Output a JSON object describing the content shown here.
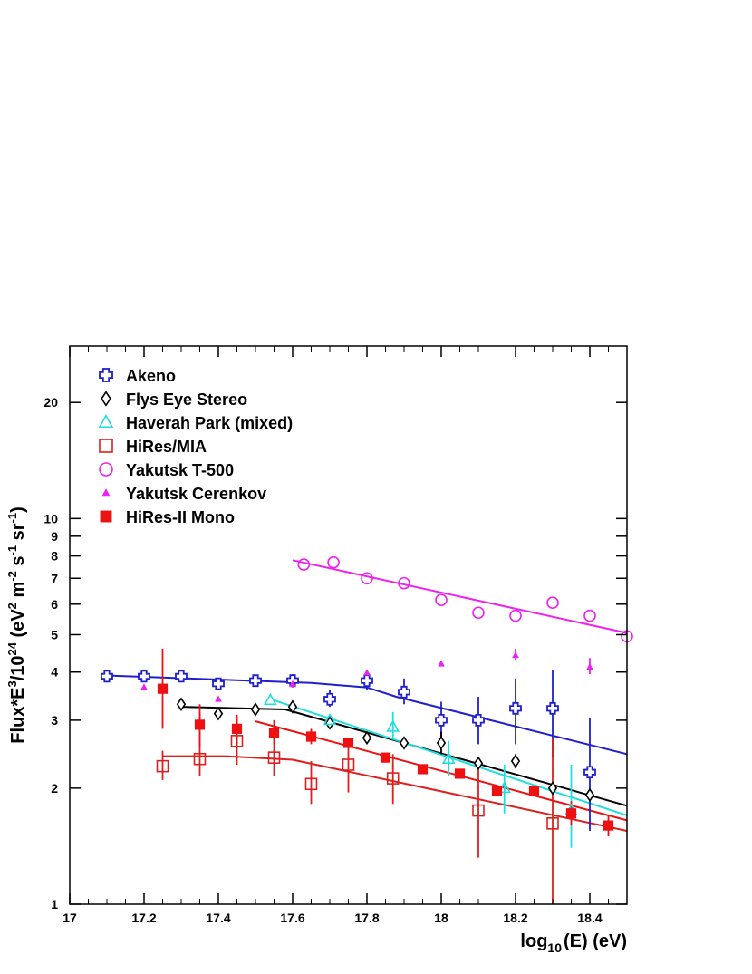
{
  "chart_data": {
    "type": "scatter",
    "title": "",
    "xlabel": {
      "base": "log",
      "sub": "10",
      "rest": "(E) (eV)"
    },
    "ylabel": {
      "p1": "Flux*E",
      "s1": "3",
      "p2": "/10",
      "s2": "24",
      "p3": " (eV",
      "s3": "2",
      "p4": " m",
      "s4": "-2",
      "p5": " s",
      "s5": "-1",
      "p6": " sr",
      "s6": "-1",
      "p7": ")"
    },
    "xlim": [
      17.0,
      18.5
    ],
    "ylim": [
      1,
      28
    ],
    "y_scale": "log",
    "grid": false,
    "legend_position": "top-left",
    "x_ticks": [
      17.0,
      17.2,
      17.4,
      17.6,
      17.8,
      18.0,
      18.2,
      18.4
    ],
    "x_tick_labels": [
      "17",
      "17.2",
      "17.4",
      "17.6",
      "17.8",
      "18",
      "18.2",
      "18.4"
    ],
    "y_ticks": [
      1,
      2,
      3,
      4,
      5,
      6,
      7,
      8,
      9,
      10,
      20
    ],
    "y_tick_labels": [
      "1",
      "2",
      "3",
      "4",
      "5",
      "6",
      "7",
      "8",
      "9",
      "10",
      "20"
    ],
    "series": [
      {
        "name": "Akeno",
        "marker": "cross-open",
        "color": "#1f1fcc",
        "points": [
          {
            "x": 17.1,
            "y": 3.9,
            "lo": 3.82,
            "hi": 3.98
          },
          {
            "x": 17.2,
            "y": 3.9,
            "lo": 3.8,
            "hi": 4.0
          },
          {
            "x": 17.3,
            "y": 3.9,
            "lo": 3.8,
            "hi": 4.0
          },
          {
            "x": 17.4,
            "y": 3.73,
            "lo": 3.62,
            "hi": 3.85
          },
          {
            "x": 17.5,
            "y": 3.8,
            "lo": 3.68,
            "hi": 3.92
          },
          {
            "x": 17.6,
            "y": 3.8,
            "lo": 3.65,
            "hi": 3.95
          },
          {
            "x": 17.7,
            "y": 3.4,
            "lo": 3.25,
            "hi": 3.6
          },
          {
            "x": 17.8,
            "y": 3.8,
            "lo": 3.6,
            "hi": 4.0
          },
          {
            "x": 17.9,
            "y": 3.55,
            "lo": 3.3,
            "hi": 3.85
          },
          {
            "x": 18.0,
            "y": 3.0,
            "lo": 2.7,
            "hi": 3.35
          },
          {
            "x": 18.1,
            "y": 3.0,
            "lo": 2.6,
            "hi": 3.45
          },
          {
            "x": 18.2,
            "y": 3.22,
            "lo": 2.6,
            "hi": 3.85
          },
          {
            "x": 18.3,
            "y": 3.22,
            "lo": 2.4,
            "hi": 4.05
          },
          {
            "x": 18.4,
            "y": 2.2,
            "lo": 1.55,
            "hi": 3.05
          }
        ],
        "fit": [
          [
            17.1,
            3.92
          ],
          [
            17.65,
            3.75
          ],
          [
            17.8,
            3.65
          ],
          [
            17.88,
            3.45
          ],
          [
            18.5,
            2.45
          ]
        ]
      },
      {
        "name": "Flys Eye Stereo",
        "marker": "diamond-open",
        "color": "#000000",
        "points": [
          {
            "x": 17.3,
            "y": 3.3
          },
          {
            "x": 17.4,
            "y": 3.12
          },
          {
            "x": 17.5,
            "y": 3.2
          },
          {
            "x": 17.6,
            "y": 3.25
          },
          {
            "x": 17.7,
            "y": 2.95
          },
          {
            "x": 17.8,
            "y": 2.7
          },
          {
            "x": 17.9,
            "y": 2.62
          },
          {
            "x": 18.0,
            "y": 2.62,
            "lo": 2.45,
            "hi": 2.8
          },
          {
            "x": 18.1,
            "y": 2.32
          },
          {
            "x": 18.2,
            "y": 2.35,
            "lo": 2.25,
            "hi": 2.45
          },
          {
            "x": 18.3,
            "y": 2.0
          },
          {
            "x": 18.4,
            "y": 1.92
          }
        ],
        "fit": [
          [
            17.3,
            3.25
          ],
          [
            17.58,
            3.2
          ],
          [
            18.5,
            1.8
          ]
        ]
      },
      {
        "name": "Haverah Park (mixed)",
        "marker": "triangle-open",
        "color": "#22dddd",
        "points": [
          {
            "x": 17.54,
            "y": 3.38
          },
          {
            "x": 17.7,
            "y": 3.0
          },
          {
            "x": 17.87,
            "y": 2.88,
            "lo": 2.7,
            "hi": 3.15
          },
          {
            "x": 18.02,
            "y": 2.38,
            "lo": 2.15,
            "hi": 2.65
          },
          {
            "x": 18.17,
            "y": 2.0,
            "lo": 1.72,
            "hi": 2.3
          },
          {
            "x": 18.35,
            "y": 1.75,
            "lo": 1.4,
            "hi": 2.3
          }
        ],
        "fit": [
          [
            17.55,
            3.38
          ],
          [
            18.5,
            1.7
          ]
        ]
      },
      {
        "name": "HiRes/MIA",
        "marker": "square-open",
        "color": "#dd1f1f",
        "points": [
          {
            "x": 17.25,
            "y": 2.28,
            "lo": 2.1,
            "hi": 2.5
          },
          {
            "x": 17.35,
            "y": 2.38,
            "lo": 2.15,
            "hi": 3.15
          },
          {
            "x": 17.45,
            "y": 2.65,
            "lo": 2.3,
            "hi": 3.05
          },
          {
            "x": 17.55,
            "y": 2.4,
            "lo": 2.15,
            "hi": 2.9
          },
          {
            "x": 17.65,
            "y": 2.05,
            "lo": 1.82,
            "hi": 2.35
          },
          {
            "x": 17.75,
            "y": 2.3,
            "lo": 1.95,
            "hi": 2.7
          },
          {
            "x": 17.87,
            "y": 2.12,
            "lo": 1.82,
            "hi": 2.45
          },
          {
            "x": 18.1,
            "y": 1.75,
            "lo": 1.32,
            "hi": 2.35
          },
          {
            "x": 18.3,
            "y": 1.62,
            "lo": 1.0,
            "hi": 2.7
          }
        ],
        "fit": [
          [
            17.25,
            2.42
          ],
          [
            17.42,
            2.42
          ],
          [
            17.6,
            2.37
          ],
          [
            18.5,
            1.55
          ]
        ]
      },
      {
        "name": "Yakutsk T-500",
        "marker": "circle-open",
        "color": "#ee22ee",
        "points": [
          {
            "x": 17.63,
            "y": 7.6
          },
          {
            "x": 17.71,
            "y": 7.7
          },
          {
            "x": 17.8,
            "y": 7.0
          },
          {
            "x": 17.9,
            "y": 6.8
          },
          {
            "x": 18.0,
            "y": 6.15
          },
          {
            "x": 18.1,
            "y": 5.7
          },
          {
            "x": 18.2,
            "y": 5.6
          },
          {
            "x": 18.3,
            "y": 6.05
          },
          {
            "x": 18.4,
            "y": 5.6
          },
          {
            "x": 18.5,
            "y": 4.95
          }
        ],
        "fit": [
          [
            17.6,
            7.8
          ],
          [
            18.5,
            5.05
          ]
        ]
      },
      {
        "name": "Yakutsk Cerenkov",
        "marker": "triangle-filled",
        "color": "#ee22ee",
        "points": [
          {
            "x": 17.2,
            "y": 3.65
          },
          {
            "x": 17.4,
            "y": 3.4
          },
          {
            "x": 17.6,
            "y": 3.72
          },
          {
            "x": 17.8,
            "y": 3.98
          },
          {
            "x": 18.0,
            "y": 4.2
          },
          {
            "x": 18.2,
            "y": 4.42,
            "lo": 4.3,
            "hi": 4.6
          },
          {
            "x": 18.4,
            "y": 4.12,
            "lo": 3.95,
            "hi": 4.35
          }
        ],
        "fit": []
      },
      {
        "name": "HiRes-II Mono",
        "marker": "square-filled",
        "color": "#ee1111",
        "points": [
          {
            "x": 17.25,
            "y": 3.62,
            "lo": 2.85,
            "hi": 4.6
          },
          {
            "x": 17.35,
            "y": 2.92,
            "lo": 2.55,
            "hi": 3.3
          },
          {
            "x": 17.45,
            "y": 2.85,
            "lo": 2.6,
            "hi": 3.1
          },
          {
            "x": 17.55,
            "y": 2.78,
            "lo": 2.6,
            "hi": 3.0
          },
          {
            "x": 17.65,
            "y": 2.72,
            "lo": 2.6,
            "hi": 2.85
          },
          {
            "x": 17.75,
            "y": 2.62
          },
          {
            "x": 17.85,
            "y": 2.4
          },
          {
            "x": 17.95,
            "y": 2.24
          },
          {
            "x": 18.05,
            "y": 2.18
          },
          {
            "x": 18.15,
            "y": 1.97
          },
          {
            "x": 18.25,
            "y": 1.97
          },
          {
            "x": 18.35,
            "y": 1.72,
            "lo": 1.6,
            "hi": 1.85
          },
          {
            "x": 18.45,
            "y": 1.6,
            "lo": 1.5,
            "hi": 1.7
          }
        ],
        "fit": [
          [
            17.5,
            2.98
          ],
          [
            18.5,
            1.65
          ]
        ]
      }
    ]
  }
}
